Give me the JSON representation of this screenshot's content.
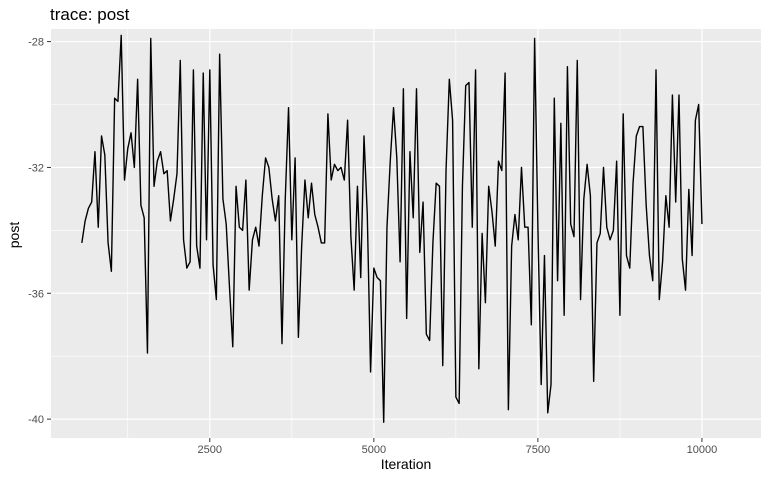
{
  "chart_data": {
    "type": "line",
    "title": "trace: post",
    "xlabel": "Iteration",
    "ylabel": "post",
    "xlim": [
      80,
      10900
    ],
    "ylim": [
      -40.6,
      -27.6
    ],
    "x_ticks": [
      2500,
      5000,
      7500,
      10000
    ],
    "x_tick_labels": [
      "2500",
      "5000",
      "7500",
      "10000"
    ],
    "y_ticks": [
      -28,
      -32,
      -36,
      -40
    ],
    "y_tick_labels": [
      "-28",
      "-32",
      "-36",
      "-40"
    ],
    "grid": true,
    "background": "#ebebeb",
    "line_color": "#000000",
    "x_start": 550,
    "x_step": 50,
    "series": [
      {
        "values": [
          -34.4,
          -33.7,
          -33.3,
          -33.1,
          -31.5,
          -33.9,
          -31.0,
          -31.6,
          -34.4,
          -35.3,
          -29.8,
          -29.9,
          -27.8,
          -32.4,
          -31.4,
          -30.9,
          -32.0,
          -29.2,
          -33.2,
          -33.6,
          -37.9,
          -27.9,
          -32.6,
          -31.8,
          -31.5,
          -32.2,
          -32.1,
          -33.7,
          -33.0,
          -32.2,
          -28.6,
          -34.3,
          -35.2,
          -35.0,
          -28.9,
          -34.5,
          -35.2,
          -29.0,
          -34.3,
          -28.9,
          -35.1,
          -36.2,
          -28.4,
          -33.0,
          -33.8,
          -35.8,
          -37.7,
          -32.6,
          -33.9,
          -34.0,
          -32.4,
          -35.9,
          -34.3,
          -33.9,
          -34.5,
          -32.9,
          -31.7,
          -32.0,
          -33.0,
          -33.7,
          -32.9,
          -37.6,
          -33.0,
          -30.1,
          -34.3,
          -31.7,
          -37.4,
          -34.5,
          -32.4,
          -33.6,
          -32.5,
          -33.5,
          -33.9,
          -34.4,
          -34.4,
          -30.3,
          -32.4,
          -31.9,
          -32.1,
          -32.0,
          -32.4,
          -30.5,
          -34.2,
          -35.9,
          -32.6,
          -35.5,
          -31.0,
          -33.5,
          -38.5,
          -35.2,
          -35.5,
          -35.6,
          -40.1,
          -33.9,
          -31.8,
          -30.1,
          -31.7,
          -35.0,
          -29.5,
          -36.8,
          -31.5,
          -33.6,
          -29.5,
          -34.7,
          -33.1,
          -37.3,
          -37.5,
          -34.4,
          -32.5,
          -32.6,
          -38.3,
          -32.1,
          -29.2,
          -30.5,
          -39.3,
          -39.5,
          -32.6,
          -29.4,
          -29.3,
          -33.9,
          -28.9,
          -38.4,
          -34.1,
          -36.3,
          -32.6,
          -33.4,
          -34.5,
          -31.8,
          -32.1,
          -29.0,
          -39.7,
          -34.5,
          -33.5,
          -34.3,
          -32.0,
          -33.9,
          -33.9,
          -37.0,
          -27.9,
          -33.9,
          -38.9,
          -34.8,
          -39.8,
          -38.9,
          -29.8,
          -35.6,
          -30.6,
          -36.7,
          -28.8,
          -33.8,
          -34.2,
          -28.6,
          -36.2,
          -33.0,
          -31.9,
          -32.9,
          -38.8,
          -34.4,
          -34.1,
          -32.0,
          -33.9,
          -34.3,
          -34.0,
          -31.8,
          -36.7,
          -30.3,
          -34.8,
          -35.2,
          -32.5,
          -31.0,
          -30.7,
          -30.7,
          -33.2,
          -34.8,
          -35.6,
          -28.9,
          -36.2,
          -35.0,
          -32.9,
          -33.9,
          -29.7,
          -33.1,
          -29.7,
          -34.9,
          -35.9,
          -32.7,
          -34.8,
          -30.5,
          -30.0,
          -33.8
        ]
      }
    ]
  }
}
